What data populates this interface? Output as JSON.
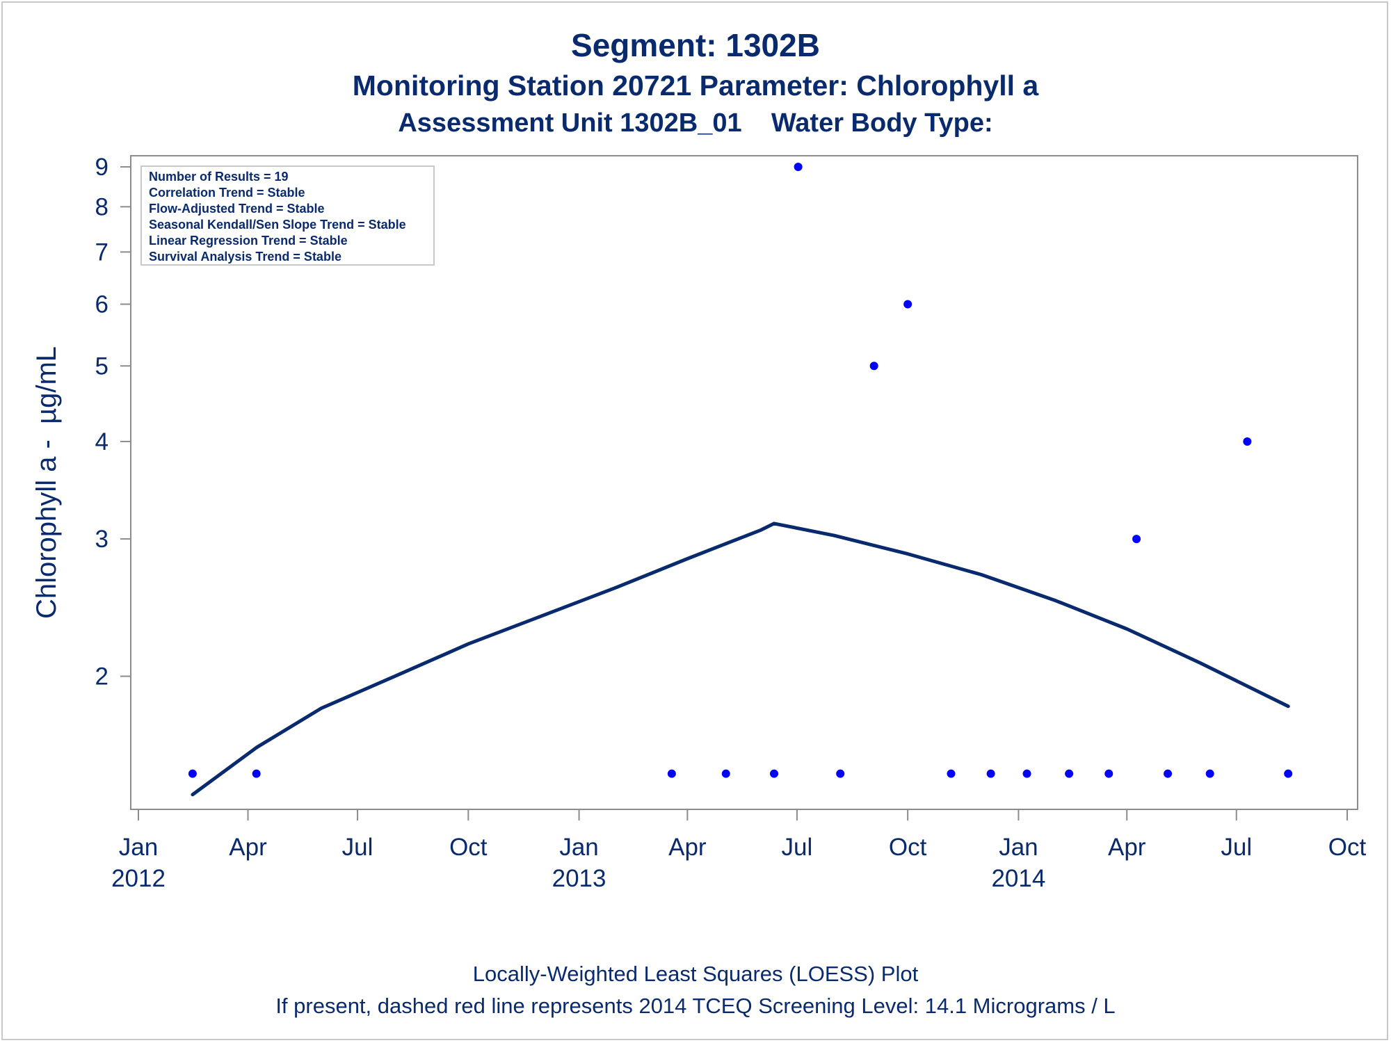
{
  "chart_data": {
    "type": "scatter",
    "title": "Segment: 1302B",
    "subtitle": "Monitoring Station 20721 Parameter: Chlorophyll a",
    "subtitle2": "Assessment Unit 1302B_01    Water Body Type:",
    "ylabel": "Chlorophyll a -  µg/mL",
    "xlabel": "",
    "yscale": "log",
    "ylim": [
      1.35,
      9.3
    ],
    "yticks": [
      2,
      3,
      4,
      5,
      6,
      7,
      8,
      9
    ],
    "xlim": [
      "2012-01-01",
      "2014-10-01"
    ],
    "xticks": [
      {
        "date": "2012-01-01",
        "label": "Jan",
        "year": "2012"
      },
      {
        "date": "2012-04-01",
        "label": "Apr",
        "year": ""
      },
      {
        "date": "2012-07-01",
        "label": "Jul",
        "year": ""
      },
      {
        "date": "2012-10-01",
        "label": "Oct",
        "year": ""
      },
      {
        "date": "2013-01-01",
        "label": "Jan",
        "year": "2013"
      },
      {
        "date": "2013-04-01",
        "label": "Apr",
        "year": ""
      },
      {
        "date": "2013-07-01",
        "label": "Jul",
        "year": ""
      },
      {
        "date": "2013-10-01",
        "label": "Oct",
        "year": ""
      },
      {
        "date": "2014-01-01",
        "label": "Jan",
        "year": "2014"
      },
      {
        "date": "2014-04-01",
        "label": "Apr",
        "year": ""
      },
      {
        "date": "2014-07-01",
        "label": "Jul",
        "year": ""
      },
      {
        "date": "2014-10-01",
        "label": "Oct",
        "year": ""
      }
    ],
    "grid": false,
    "series": [
      {
        "kind": "points",
        "color": "#0000ff",
        "points": [
          {
            "x": "2012-02-15",
            "y": 1.5
          },
          {
            "x": "2012-04-08",
            "y": 1.5
          },
          {
            "x": "2013-03-19",
            "y": 1.5
          },
          {
            "x": "2013-05-03",
            "y": 1.5
          },
          {
            "x": "2013-06-12",
            "y": 1.5
          },
          {
            "x": "2013-07-02",
            "y": 9
          },
          {
            "x": "2013-08-06",
            "y": 1.5
          },
          {
            "x": "2013-09-03",
            "y": 5
          },
          {
            "x": "2013-10-01",
            "y": 6
          },
          {
            "x": "2013-11-06",
            "y": 1.5
          },
          {
            "x": "2013-12-09",
            "y": 1.5
          },
          {
            "x": "2014-01-08",
            "y": 1.5
          },
          {
            "x": "2014-02-12",
            "y": 1.5
          },
          {
            "x": "2014-03-17",
            "y": 1.5
          },
          {
            "x": "2014-04-09",
            "y": 3
          },
          {
            "x": "2014-05-05",
            "y": 1.5
          },
          {
            "x": "2014-06-09",
            "y": 1.5
          },
          {
            "x": "2014-07-10",
            "y": 4
          },
          {
            "x": "2014-08-13",
            "y": 1.5
          }
        ]
      },
      {
        "kind": "line",
        "color": "#0a2a6e",
        "points": [
          {
            "x": "2012-02-15",
            "y": 1.41
          },
          {
            "x": "2012-04-08",
            "y": 1.62
          },
          {
            "x": "2012-06-01",
            "y": 1.82
          },
          {
            "x": "2012-08-01",
            "y": 2.0
          },
          {
            "x": "2012-10-01",
            "y": 2.2
          },
          {
            "x": "2012-12-01",
            "y": 2.39
          },
          {
            "x": "2013-02-01",
            "y": 2.6
          },
          {
            "x": "2013-04-01",
            "y": 2.83
          },
          {
            "x": "2013-06-01",
            "y": 3.08
          },
          {
            "x": "2013-06-12",
            "y": 3.14
          },
          {
            "x": "2013-08-01",
            "y": 3.03
          },
          {
            "x": "2013-10-01",
            "y": 2.87
          },
          {
            "x": "2013-12-01",
            "y": 2.7
          },
          {
            "x": "2014-02-01",
            "y": 2.5
          },
          {
            "x": "2014-04-01",
            "y": 2.3
          },
          {
            "x": "2014-06-01",
            "y": 2.08
          },
          {
            "x": "2014-08-13",
            "y": 1.83
          }
        ]
      }
    ],
    "stats_box": [
      "Number of Results = 19",
      "Correlation Trend = Stable",
      "Flow-Adjusted Trend = Stable",
      "Seasonal Kendall/Sen Slope Trend = Stable",
      "Linear Regression Trend = Stable",
      "Survival Analysis Trend = Stable"
    ],
    "footnote1": "Locally-Weighted Least Squares (LOESS) Plot",
    "footnote2": "If present, dashed red line represents 2014 TCEQ Screening Level: 14.1 Micrograms / L"
  }
}
